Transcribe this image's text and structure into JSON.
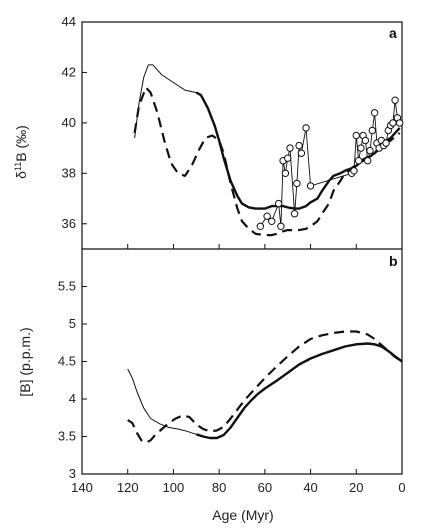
{
  "chart_data": [
    {
      "type": "line",
      "panel_label": "a",
      "xlim": [
        140,
        0
      ],
      "ylim": [
        35,
        44
      ],
      "yticks": [
        36,
        38,
        40,
        42,
        44
      ],
      "ylabel_main": "δ",
      "ylabel_sup": "11",
      "ylabel_rest": "B (‰)",
      "series": [
        {
          "style": "thin-then-thick solid",
          "x": [
            117,
            115,
            113,
            111,
            109,
            107,
            105,
            100,
            95,
            90,
            88,
            85,
            82,
            80,
            78,
            75,
            72,
            70,
            67,
            64,
            60,
            57,
            55,
            52,
            50,
            47,
            45,
            42,
            40,
            37,
            35,
            32,
            30,
            27,
            25,
            22,
            20,
            18,
            15,
            12,
            10,
            7,
            5,
            3,
            1
          ],
          "y": [
            39.4,
            40.8,
            41.8,
            42.3,
            42.3,
            42.1,
            41.9,
            41.6,
            41.3,
            41.2,
            41.1,
            40.6,
            39.9,
            39.3,
            38.6,
            37.7,
            37.1,
            36.8,
            36.65,
            36.6,
            36.6,
            36.7,
            36.7,
            36.7,
            36.65,
            36.6,
            36.6,
            36.7,
            36.85,
            37.0,
            37.3,
            37.7,
            37.9,
            38.0,
            38.1,
            38.2,
            38.3,
            38.45,
            38.6,
            38.8,
            39.0,
            39.3,
            39.4,
            39.6,
            39.8
          ]
        },
        {
          "style": "dashed",
          "x": [
            117,
            115,
            112,
            110,
            107,
            104,
            101,
            98,
            95,
            92,
            89,
            86,
            83,
            80,
            78,
            75,
            72,
            70,
            67,
            64,
            60,
            57,
            55,
            52,
            50,
            47,
            45,
            42,
            40,
            37,
            35,
            32,
            30,
            27,
            25,
            22,
            20,
            18,
            15,
            12,
            10,
            7,
            5,
            3,
            1
          ],
          "y": [
            39.6,
            40.7,
            41.4,
            41.2,
            40.4,
            39.3,
            38.4,
            38.0,
            37.9,
            38.3,
            38.9,
            39.4,
            39.5,
            39.3,
            38.8,
            37.6,
            36.6,
            36.1,
            35.8,
            35.6,
            35.55,
            35.55,
            35.6,
            35.7,
            35.75,
            35.75,
            35.75,
            35.8,
            35.9,
            36.1,
            36.4,
            36.8,
            37.3,
            37.7,
            38.0,
            38.2,
            38.35,
            38.5,
            38.65,
            38.8,
            38.95,
            39.2,
            39.3,
            39.45,
            39.6
          ]
        },
        {
          "style": "markers",
          "marker": "open-circle",
          "x": [
            62,
            59,
            57,
            54,
            53,
            52,
            51,
            50,
            49,
            47,
            46,
            45,
            44,
            42,
            40,
            22,
            21,
            20,
            19,
            18,
            17,
            16,
            15,
            14,
            13,
            12,
            11,
            10,
            9,
            8,
            7,
            6,
            5,
            4,
            3,
            2,
            1
          ],
          "y": [
            35.9,
            36.3,
            36.1,
            36.8,
            35.9,
            38.5,
            38.0,
            38.6,
            39.0,
            36.4,
            37.6,
            39.1,
            38.8,
            39.8,
            37.5,
            38.0,
            38.1,
            39.5,
            38.5,
            39.0,
            39.5,
            39.3,
            38.5,
            38.9,
            39.7,
            40.4,
            39.2,
            39.0,
            39.3,
            39.1,
            39.2,
            39.7,
            39.9,
            40.0,
            40.9,
            40.2,
            40.0
          ]
        }
      ]
    },
    {
      "type": "line",
      "panel_label": "b",
      "xlim": [
        140,
        0
      ],
      "ylim": [
        3,
        6
      ],
      "yticks": [
        3,
        3.5,
        4,
        4.5,
        5,
        5.5
      ],
      "xticks": [
        140,
        120,
        100,
        80,
        60,
        40,
        20,
        0
      ],
      "xlabel": "Age (Myr)",
      "ylabel": "[B] (p.p.m.)",
      "series": [
        {
          "style": "thin-then-thick solid",
          "x": [
            120,
            118,
            116,
            113,
            110,
            106,
            102,
            98,
            94,
            90,
            87,
            84,
            81,
            78,
            75,
            72,
            69,
            66,
            63,
            60,
            55,
            50,
            45,
            40,
            35,
            30,
            25,
            20,
            15,
            12,
            9,
            6,
            3,
            0
          ],
          "y": [
            4.4,
            4.28,
            4.1,
            3.88,
            3.74,
            3.67,
            3.62,
            3.6,
            3.57,
            3.53,
            3.5,
            3.48,
            3.48,
            3.52,
            3.62,
            3.75,
            3.88,
            3.98,
            4.07,
            4.14,
            4.24,
            4.35,
            4.46,
            4.54,
            4.6,
            4.65,
            4.7,
            4.73,
            4.74,
            4.73,
            4.7,
            4.64,
            4.57,
            4.5
          ]
        },
        {
          "style": "dashed",
          "x": [
            120,
            118,
            116,
            114,
            112,
            110,
            108,
            105,
            102,
            99,
            96,
            93,
            90,
            87,
            84,
            81,
            78,
            75,
            72,
            69,
            66,
            63,
            60,
            55,
            50,
            45,
            40,
            35,
            30,
            25,
            20,
            15,
            12,
            9,
            6,
            3,
            0
          ],
          "y": [
            3.72,
            3.68,
            3.55,
            3.45,
            3.42,
            3.45,
            3.52,
            3.6,
            3.68,
            3.74,
            3.78,
            3.76,
            3.66,
            3.6,
            3.57,
            3.58,
            3.63,
            3.74,
            3.86,
            3.98,
            4.08,
            4.18,
            4.28,
            4.43,
            4.57,
            4.7,
            4.8,
            4.85,
            4.88,
            4.9,
            4.9,
            4.86,
            4.8,
            4.72,
            4.64,
            4.56,
            4.5
          ]
        }
      ]
    }
  ]
}
